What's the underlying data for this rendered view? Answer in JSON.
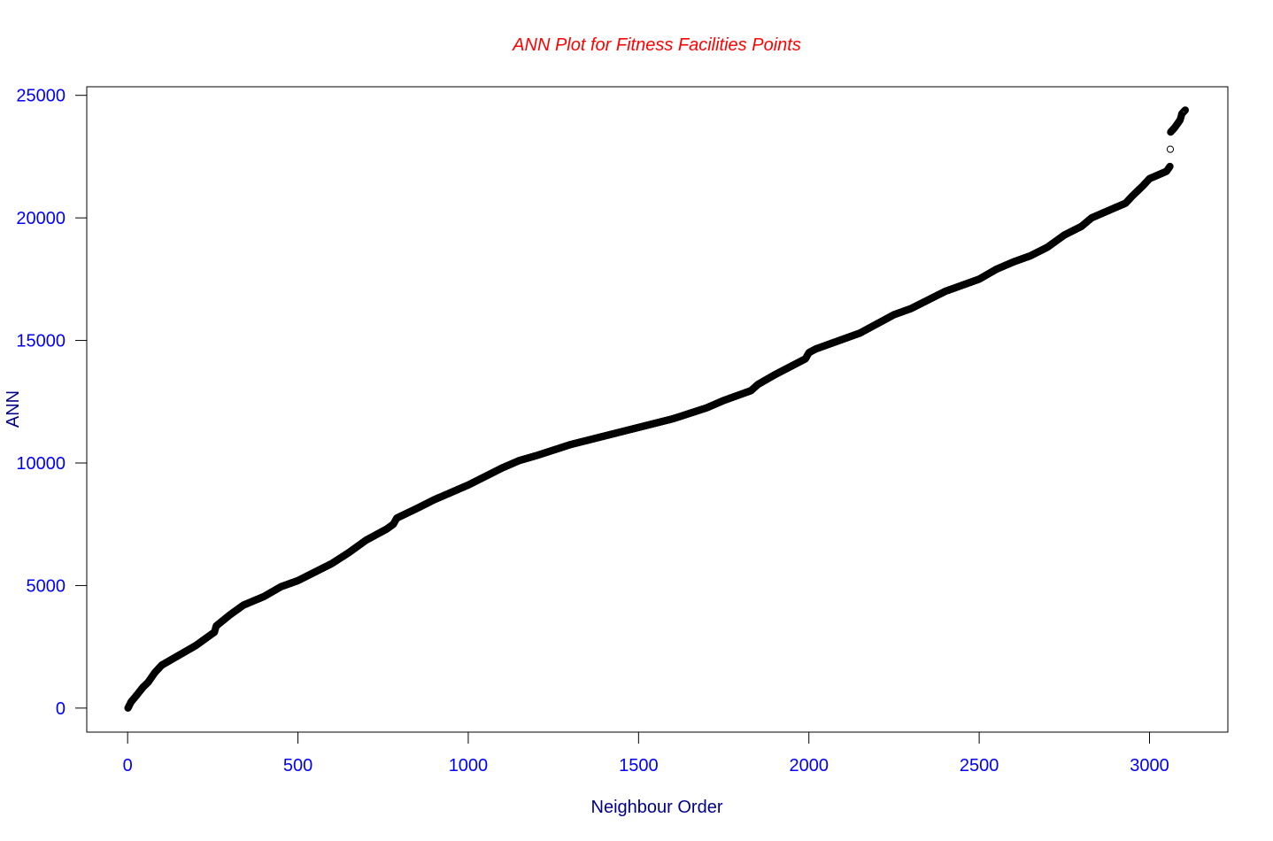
{
  "chart_data": {
    "type": "scatter",
    "title": "ANN Plot for Fitness Facilities Points",
    "xlabel": "Neighbour Order",
    "ylabel": "ANN",
    "xlim": [
      -120,
      3230
    ],
    "ylim": [
      -980,
      25350
    ],
    "x_ticks": [
      0,
      500,
      1000,
      1500,
      2000,
      2500,
      3000
    ],
    "y_ticks": [
      0,
      5000,
      10000,
      15000,
      20000,
      25000
    ],
    "grid": false,
    "point_shape": "open-circle",
    "colors": {
      "title": "#ff0000",
      "axis_label": "#00008b",
      "tick_label": "#0000ff",
      "points": "#000000",
      "frame": "#000000"
    },
    "n_points": 3105,
    "curve_knots": [
      [
        1,
        0
      ],
      [
        10,
        250
      ],
      [
        25,
        500
      ],
      [
        45,
        850
      ],
      [
        60,
        1050
      ],
      [
        80,
        1450
      ],
      [
        100,
        1750
      ],
      [
        125,
        1950
      ],
      [
        150,
        2150
      ],
      [
        200,
        2550
      ],
      [
        240,
        2950
      ],
      [
        255,
        3100
      ],
      [
        260,
        3350
      ],
      [
        300,
        3800
      ],
      [
        340,
        4200
      ],
      [
        400,
        4550
      ],
      [
        450,
        4950
      ],
      [
        500,
        5200
      ],
      [
        550,
        5550
      ],
      [
        600,
        5900
      ],
      [
        650,
        6350
      ],
      [
        700,
        6850
      ],
      [
        760,
        7300
      ],
      [
        780,
        7500
      ],
      [
        790,
        7750
      ],
      [
        850,
        8150
      ],
      [
        900,
        8500
      ],
      [
        1000,
        9100
      ],
      [
        1050,
        9450
      ],
      [
        1100,
        9800
      ],
      [
        1150,
        10100
      ],
      [
        1200,
        10300
      ],
      [
        1300,
        10750
      ],
      [
        1400,
        11100
      ],
      [
        1500,
        11450
      ],
      [
        1600,
        11800
      ],
      [
        1700,
        12250
      ],
      [
        1750,
        12550
      ],
      [
        1830,
        12950
      ],
      [
        1850,
        13200
      ],
      [
        1900,
        13600
      ],
      [
        1990,
        14250
      ],
      [
        2000,
        14500
      ],
      [
        2020,
        14650
      ],
      [
        2100,
        15050
      ],
      [
        2150,
        15300
      ],
      [
        2250,
        16050
      ],
      [
        2300,
        16300
      ],
      [
        2350,
        16650
      ],
      [
        2400,
        17000
      ],
      [
        2500,
        17500
      ],
      [
        2550,
        17900
      ],
      [
        2600,
        18200
      ],
      [
        2650,
        18450
      ],
      [
        2700,
        18800
      ],
      [
        2750,
        19300
      ],
      [
        2800,
        19650
      ],
      [
        2830,
        20000
      ],
      [
        2880,
        20300
      ],
      [
        2930,
        20600
      ],
      [
        2950,
        20900
      ],
      [
        2980,
        21300
      ],
      [
        3000,
        21600
      ],
      [
        3050,
        21900
      ],
      [
        3060,
        22100
      ],
      [
        3062,
        23500
      ],
      [
        3075,
        23700
      ],
      [
        3090,
        24000
      ],
      [
        3095,
        24250
      ],
      [
        3105,
        24400
      ]
    ]
  }
}
